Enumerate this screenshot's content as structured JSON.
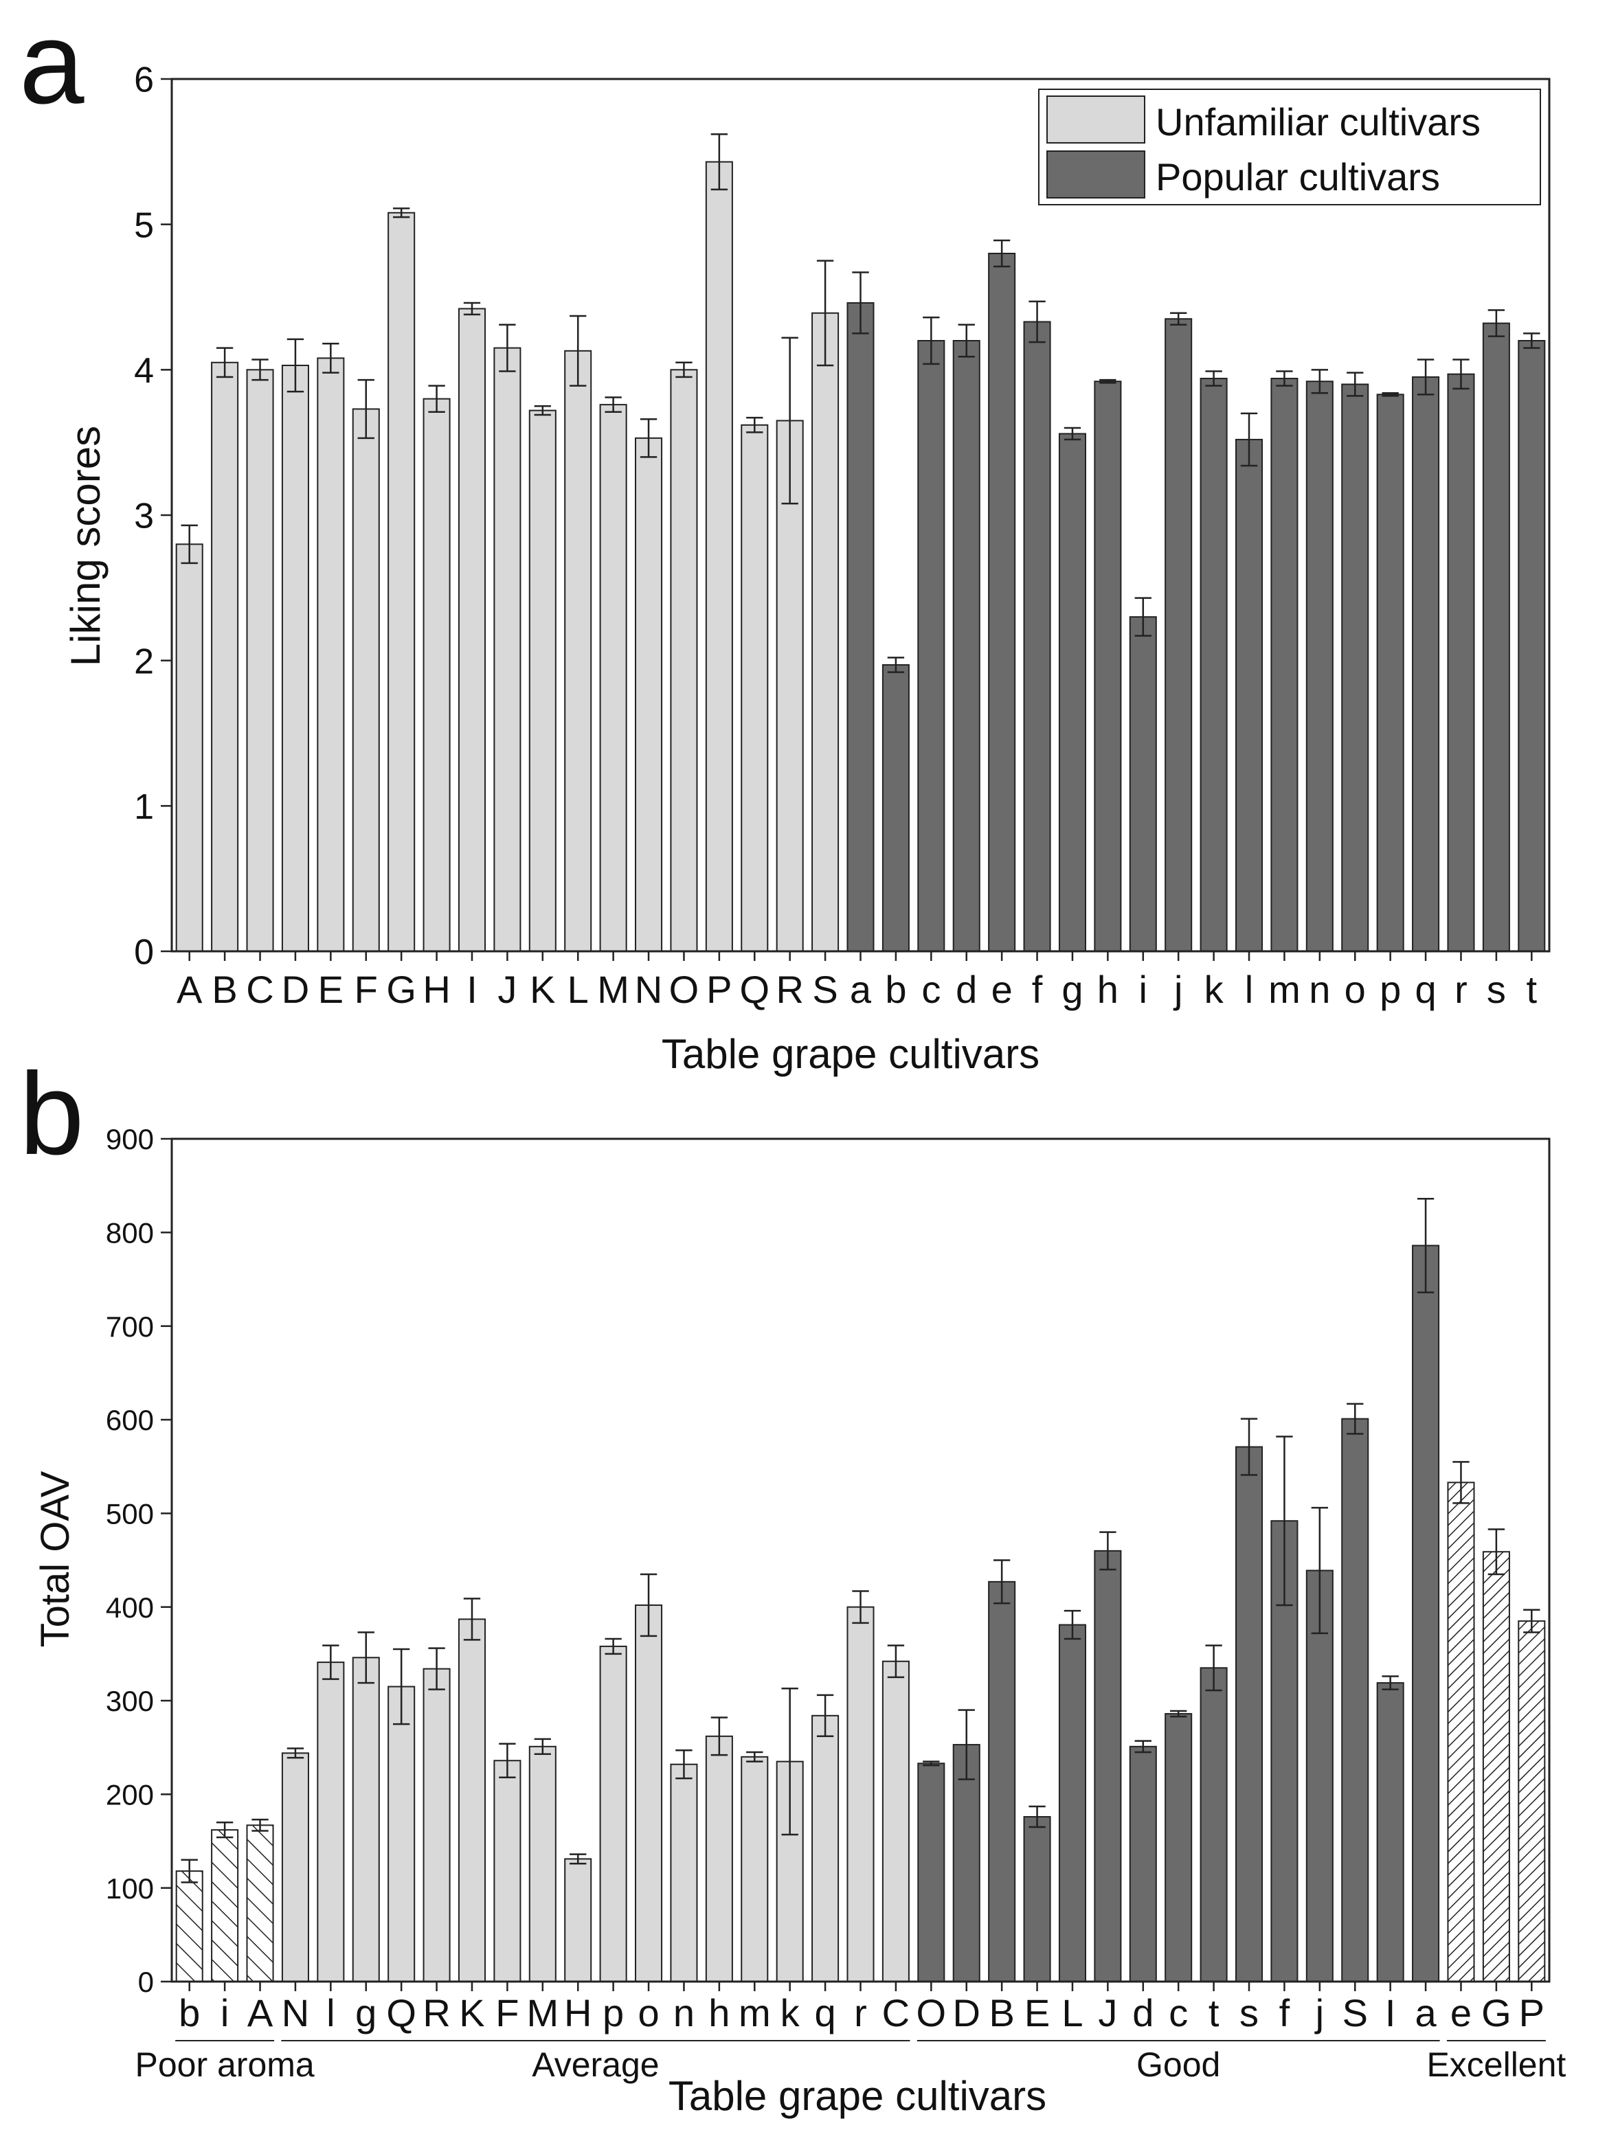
{
  "panel_letters": [
    "a",
    "b"
  ],
  "chart_data": [
    {
      "type": "bar",
      "panel": "a",
      "title": "",
      "xlabel": "Table grape cultivars",
      "ylabel": "Liking scores",
      "ylim": [
        0,
        6
      ],
      "yticks": [
        0,
        1,
        2,
        3,
        4,
        5,
        6
      ],
      "legend": {
        "position": "top-right",
        "entries": [
          {
            "label": "Unfamiliar cultivars",
            "color": "#d9d9d9"
          },
          {
            "label": "Popular cultivars",
            "color": "#6b6b6b"
          }
        ]
      },
      "categories": [
        "A",
        "B",
        "C",
        "D",
        "E",
        "F",
        "G",
        "H",
        "I",
        "J",
        "K",
        "L",
        "M",
        "N",
        "O",
        "P",
        "Q",
        "R",
        "S",
        "a",
        "b",
        "c",
        "d",
        "e",
        "f",
        "g",
        "h",
        "i",
        "j",
        "k",
        "l",
        "m",
        "n",
        "o",
        "p",
        "q",
        "r",
        "s",
        "t"
      ],
      "values": [
        2.8,
        4.05,
        4.0,
        4.03,
        4.08,
        3.73,
        5.08,
        3.8,
        4.42,
        4.15,
        3.72,
        4.13,
        3.76,
        3.53,
        4.0,
        5.43,
        3.62,
        3.65,
        4.39,
        4.46,
        1.97,
        4.2,
        4.2,
        4.8,
        4.33,
        3.56,
        3.92,
        2.3,
        4.35,
        3.94,
        3.52,
        3.94,
        3.92,
        3.9,
        3.83,
        3.95,
        3.97,
        4.32,
        4.2
      ],
      "errors": [
        0.13,
        0.1,
        0.07,
        0.18,
        0.1,
        0.2,
        0.03,
        0.09,
        0.04,
        0.16,
        0.03,
        0.24,
        0.05,
        0.13,
        0.05,
        0.19,
        0.05,
        0.57,
        0.36,
        0.21,
        0.05,
        0.16,
        0.11,
        0.09,
        0.14,
        0.04,
        0.01,
        0.13,
        0.04,
        0.05,
        0.18,
        0.05,
        0.08,
        0.08,
        0.01,
        0.12,
        0.1,
        0.09,
        0.05
      ],
      "groups": [
        "unfamiliar",
        "unfamiliar",
        "unfamiliar",
        "unfamiliar",
        "unfamiliar",
        "unfamiliar",
        "unfamiliar",
        "unfamiliar",
        "unfamiliar",
        "unfamiliar",
        "unfamiliar",
        "unfamiliar",
        "unfamiliar",
        "unfamiliar",
        "unfamiliar",
        "unfamiliar",
        "unfamiliar",
        "unfamiliar",
        "unfamiliar",
        "popular",
        "popular",
        "popular",
        "popular",
        "popular",
        "popular",
        "popular",
        "popular",
        "popular",
        "popular",
        "popular",
        "popular",
        "popular",
        "popular",
        "popular",
        "popular",
        "popular",
        "popular",
        "popular",
        "popular"
      ]
    },
    {
      "type": "bar",
      "panel": "b",
      "title": "",
      "xlabel": "Table grape cultivars",
      "ylabel": "Total OAV",
      "ylim": [
        0,
        900
      ],
      "yticks": [
        0,
        100,
        200,
        300,
        400,
        500,
        600,
        700,
        800,
        900
      ],
      "categories": [
        "b",
        "i",
        "A",
        "N",
        "l",
        "g",
        "Q",
        "R",
        "K",
        "F",
        "M",
        "H",
        "p",
        "o",
        "n",
        "h",
        "m",
        "k",
        "q",
        "r",
        "C",
        "O",
        "D",
        "B",
        "E",
        "L",
        "J",
        "d",
        "c",
        "t",
        "s",
        "f",
        "j",
        "S",
        "I",
        "a",
        "e",
        "G",
        "P"
      ],
      "values": [
        118,
        162,
        167,
        244,
        341,
        346,
        315,
        334,
        387,
        236,
        251,
        131,
        358,
        402,
        232,
        262,
        240,
        235,
        284,
        400,
        342,
        233,
        253,
        427,
        176,
        381,
        460,
        251,
        286,
        335,
        571,
        492,
        439,
        601,
        319,
        786,
        533,
        459,
        385
      ],
      "errors": [
        12,
        8,
        6,
        5,
        18,
        27,
        40,
        22,
        22,
        18,
        8,
        5,
        8,
        33,
        15,
        20,
        5,
        78,
        22,
        17,
        17,
        2,
        37,
        23,
        11,
        15,
        20,
        6,
        3,
        24,
        30,
        90,
        67,
        16,
        7,
        50,
        22,
        24,
        12
      ],
      "groups": [
        "poor",
        "poor",
        "poor",
        "unfamiliar",
        "unfamiliar",
        "unfamiliar",
        "unfamiliar",
        "unfamiliar",
        "unfamiliar",
        "unfamiliar",
        "unfamiliar",
        "unfamiliar",
        "unfamiliar",
        "unfamiliar",
        "unfamiliar",
        "unfamiliar",
        "unfamiliar",
        "unfamiliar",
        "unfamiliar",
        "unfamiliar",
        "unfamiliar",
        "popular",
        "popular",
        "popular",
        "popular",
        "popular",
        "popular",
        "popular",
        "popular",
        "popular",
        "popular",
        "popular",
        "popular",
        "popular",
        "popular",
        "popular",
        "excellent",
        "excellent",
        "excellent"
      ],
      "aroma_groups": [
        {
          "label": "Poor aroma",
          "start": 0,
          "end": 2
        },
        {
          "label": "Average",
          "start": 3,
          "end": 20
        },
        {
          "label": "Good",
          "start": 21,
          "end": 35
        },
        {
          "label": "Excellent",
          "start": 36,
          "end": 38
        }
      ]
    }
  ]
}
